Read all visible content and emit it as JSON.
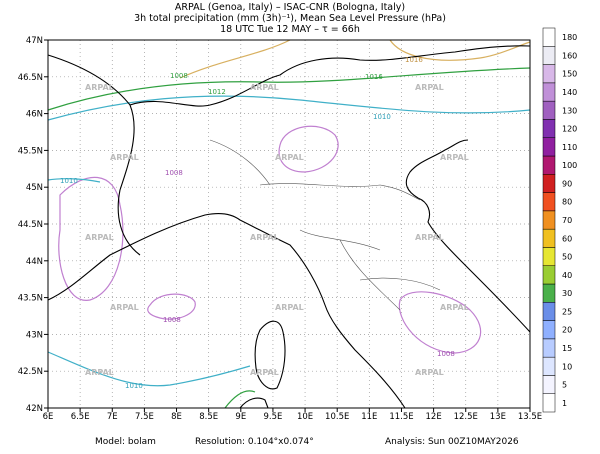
{
  "header": {
    "line1": "ARPAL (Genoa, Italy)  –  ISAC-CNR (Bologna, Italy)",
    "line2": "3h total precipitation (mm (3h)⁻¹), Mean Sea Level Pressure (hPa)",
    "line3": "18 UTC Tue 12 MAY  –  τ = 66h"
  },
  "map": {
    "watermark": "ARPAL",
    "lonlim": [
      6,
      13.5
    ],
    "latlim": [
      42,
      47
    ],
    "lonticks": [
      {
        "value": 6,
        "label": "6E"
      },
      {
        "value": 6.5,
        "label": "6.5E"
      },
      {
        "value": 7,
        "label": "7E"
      },
      {
        "value": 7.5,
        "label": "7.5E"
      },
      {
        "value": 8,
        "label": "8E"
      },
      {
        "value": 8.5,
        "label": "8.5E"
      },
      {
        "value": 9,
        "label": "9E"
      },
      {
        "value": 9.5,
        "label": "9.5E"
      },
      {
        "value": 10,
        "label": "10E"
      },
      {
        "value": 10.5,
        "label": "10.5E"
      },
      {
        "value": 11,
        "label": "11E"
      },
      {
        "value": 11.5,
        "label": "11.5E"
      },
      {
        "value": 12,
        "label": "12E"
      },
      {
        "value": 12.5,
        "label": "12.5E"
      },
      {
        "value": 13,
        "label": "13E"
      },
      {
        "value": 13.5,
        "label": "13.5E"
      }
    ],
    "latticks": [
      {
        "value": 42,
        "label": "42N"
      },
      {
        "value": 42.5,
        "label": "42.5N"
      },
      {
        "value": 43,
        "label": "43N"
      },
      {
        "value": 43.5,
        "label": "43.5N"
      },
      {
        "value": 44,
        "label": "44N"
      },
      {
        "value": 44.5,
        "label": "44.5N"
      },
      {
        "value": 45,
        "label": "45N"
      },
      {
        "value": 45.5,
        "label": "45.5N"
      },
      {
        "value": 46,
        "label": "46N"
      },
      {
        "value": 46.5,
        "label": "46.5N"
      },
      {
        "value": 47,
        "label": "47N"
      }
    ],
    "isobar_labels": [
      "1008",
      "1008",
      "1008",
      "1010",
      "1010",
      "1010",
      "1012",
      "1016",
      "1016"
    ]
  },
  "colorbar": {
    "levels": [
      1,
      5,
      10,
      15,
      20,
      25,
      30,
      40,
      50,
      60,
      70,
      80,
      90,
      100,
      110,
      120,
      130,
      140,
      150,
      160,
      180
    ],
    "colors": [
      "#ffffff",
      "#f4f4ff",
      "#dde6ff",
      "#b8ccff",
      "#8fb0ff",
      "#6a8ee8",
      "#4ab04a",
      "#9acd32",
      "#e6e632",
      "#f0c020",
      "#f09020",
      "#f05020",
      "#d02020",
      "#b01870",
      "#9020a0",
      "#8030b0",
      "#a060c0",
      "#c090d8",
      "#d8b8e8",
      "#ececf4",
      "#ffffff"
    ]
  },
  "footer": {
    "model": "Model: bolam",
    "resolution": "Resolution: 0.104°x0.074°",
    "analysis": "Analysis: Sun 00Z10MAY2026"
  }
}
